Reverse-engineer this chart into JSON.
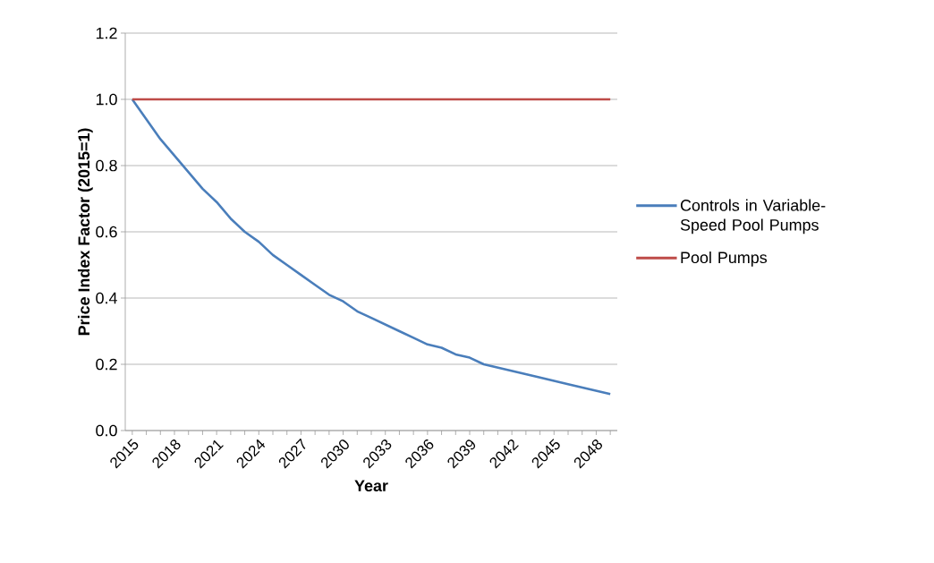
{
  "chart_data": {
    "type": "line",
    "xlabel": "Year",
    "ylabel": "Price Index Factor (2015=1)",
    "categories": [
      "2015",
      null,
      null,
      "2018",
      null,
      null,
      "2021",
      null,
      null,
      "2024",
      null,
      null,
      "2027",
      null,
      null,
      "2030",
      null,
      null,
      "2033",
      null,
      null,
      "2036",
      null,
      null,
      "2039",
      null,
      null,
      "2042",
      null,
      null,
      "2045",
      null,
      null,
      "2048",
      null
    ],
    "series": [
      {
        "name": "Controls in Variable-Speed Pool Pumps",
        "color": "#4a7ebb",
        "values": [
          1.0,
          0.94,
          0.88,
          0.83,
          0.78,
          0.73,
          0.69,
          0.64,
          0.6,
          0.57,
          0.53,
          0.5,
          0.47,
          0.44,
          0.41,
          0.39,
          0.36,
          0.34,
          0.32,
          0.3,
          0.28,
          0.26,
          0.25,
          0.23,
          0.22,
          0.2,
          0.19,
          0.18,
          0.17,
          0.16,
          0.15,
          0.14,
          0.13,
          0.12,
          0.11
        ]
      },
      {
        "name": "Pool Pumps",
        "color": "#be4b48",
        "values": [
          1,
          1,
          1,
          1,
          1,
          1,
          1,
          1,
          1,
          1,
          1,
          1,
          1,
          1,
          1,
          1,
          1,
          1,
          1,
          1,
          1,
          1,
          1,
          1,
          1,
          1,
          1,
          1,
          1,
          1,
          1,
          1,
          1,
          1,
          1
        ]
      }
    ],
    "ylim": [
      0,
      1.2
    ],
    "yticks": [
      {
        "value": 0,
        "label": "0.0"
      },
      {
        "value": 0.2,
        "label": "0.2"
      },
      {
        "value": 0.4,
        "label": "0.4"
      },
      {
        "value": 0.6,
        "label": "0.6"
      },
      {
        "value": 0.8,
        "label": "0.8"
      },
      {
        "value": 1.0,
        "label": "1.0"
      },
      {
        "value": 1.2,
        "label": "1.2"
      }
    ],
    "grid": "y",
    "legend": "right",
    "marker": "none",
    "line_style": "solid"
  }
}
